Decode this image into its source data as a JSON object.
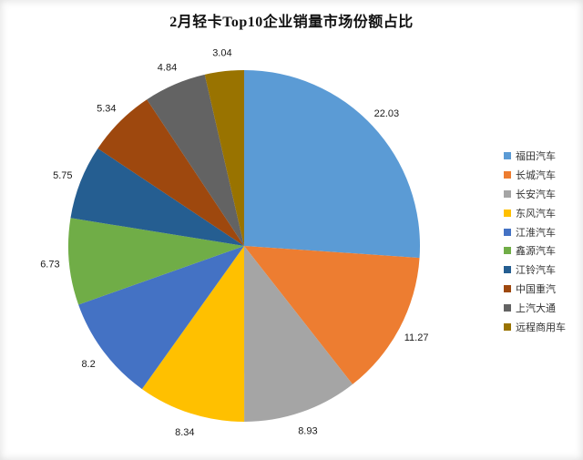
{
  "chart_data": {
    "type": "pie",
    "title": "2月轻卡Top10企业销量市场份额占比",
    "legend_position": "right",
    "data_labels": "outside_end",
    "series": [
      {
        "name": "福田汽车",
        "value": 22.03,
        "label": "22.03",
        "color": "#5B9BD5"
      },
      {
        "name": "长城汽车",
        "value": 11.27,
        "label": "11.27",
        "color": "#ED7D31"
      },
      {
        "name": "长安汽车",
        "value": 8.93,
        "label": "8.93",
        "color": "#A5A5A5"
      },
      {
        "name": "东风汽车",
        "value": 8.34,
        "label": "8.34",
        "color": "#FFC000"
      },
      {
        "name": "江淮汽车",
        "value": 8.2,
        "label": "8.2",
        "color": "#4472C4"
      },
      {
        "name": "鑫源汽车",
        "value": 6.73,
        "label": "6.73",
        "color": "#70AD47"
      },
      {
        "name": "江铃汽车",
        "value": 5.75,
        "label": "5.75",
        "color": "#255E91"
      },
      {
        "name": "中国重汽",
        "value": 5.34,
        "label": "5.34",
        "color": "#9E480E"
      },
      {
        "name": "上汽大通",
        "value": 4.84,
        "label": "4.84",
        "color": "#636363"
      },
      {
        "name": "远程商用车",
        "value": 3.04,
        "label": "3.04",
        "color": "#997300"
      }
    ]
  }
}
